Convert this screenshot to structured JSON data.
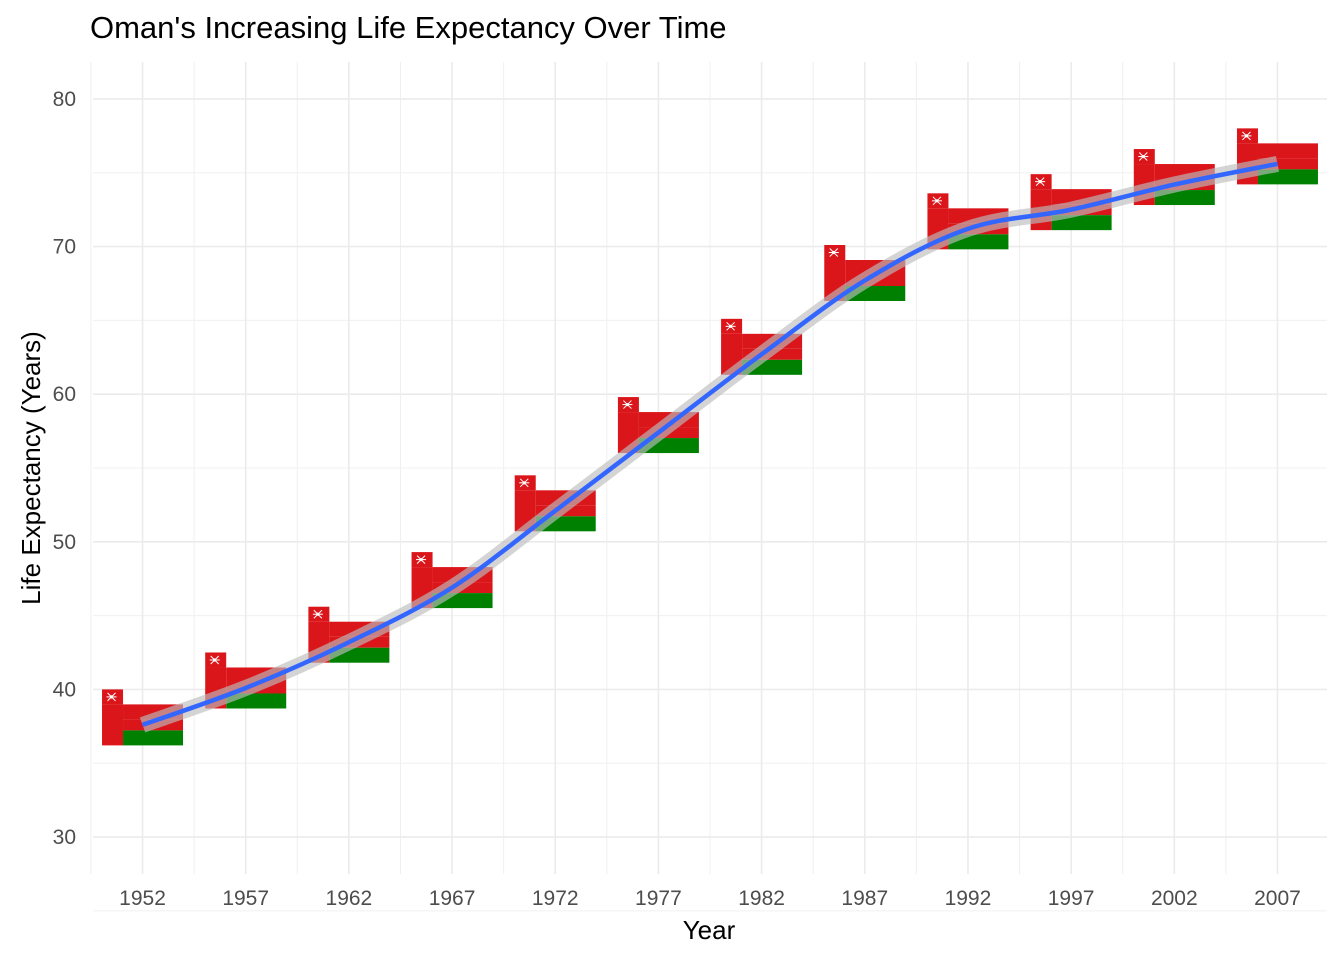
{
  "chart_data": {
    "type": "line",
    "title": "Oman's Increasing Life Expectancy Over Time",
    "xlabel": "Year",
    "ylabel": "Life Expectancy (Years)",
    "x_ticks": [
      1952,
      1957,
      1962,
      1967,
      1972,
      1977,
      1982,
      1987,
      1992,
      1997,
      2002,
      2007
    ],
    "y_ticks": [
      30,
      40,
      50,
      60,
      70,
      80
    ],
    "xlim": [
      1949.6,
      2009.4
    ],
    "ylim": [
      27.5,
      82.5
    ],
    "grid": true,
    "x": [
      1952,
      1957,
      1962,
      1967,
      1972,
      1977,
      1982,
      1987,
      1992,
      1997,
      2002,
      2007
    ],
    "series": [
      {
        "values": [
          37.6,
          40.1,
          43.2,
          46.9,
          52.1,
          57.4,
          62.7,
          67.7,
          71.2,
          72.5,
          74.2,
          75.6
        ]
      }
    ],
    "smooth_line_color": "#3366FF",
    "ribbon_color": "#BDBDBD",
    "markers": "flag of Oman",
    "flag_colors": {
      "red": "#DB161B",
      "green": "#008000",
      "white": "#FFFFFF"
    }
  }
}
